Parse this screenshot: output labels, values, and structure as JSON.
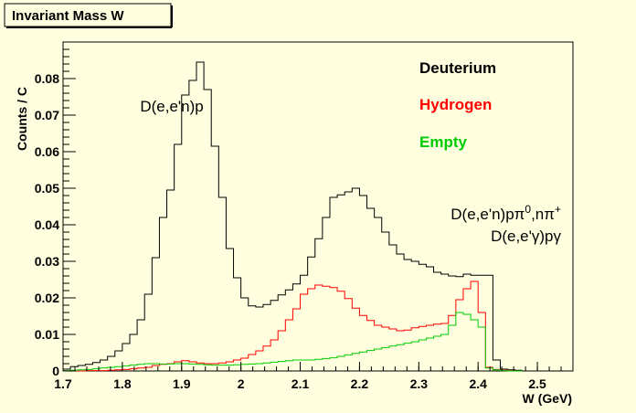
{
  "chart_data": {
    "type": "line",
    "title": "Invariant Mass W",
    "xlabel": "W (GeV)",
    "ylabel": "Counts / C",
    "xlim": [
      1.7,
      2.56
    ],
    "ylim": [
      0,
      0.09
    ],
    "xticks": [
      {
        "value": 1.7,
        "label": "1.7"
      },
      {
        "value": 1.8,
        "label": "1.8"
      },
      {
        "value": 1.9,
        "label": "1.9"
      },
      {
        "value": 2.0,
        "label": "2"
      },
      {
        "value": 2.1,
        "label": "2.1"
      },
      {
        "value": 2.2,
        "label": "2.2"
      },
      {
        "value": 2.3,
        "label": "2.3"
      },
      {
        "value": 2.4,
        "label": "2.4"
      },
      {
        "value": 2.5,
        "label": "2.5"
      }
    ],
    "yticks": [
      {
        "value": 0,
        "label": "0"
      },
      {
        "value": 0.01,
        "label": "0.01"
      },
      {
        "value": 0.02,
        "label": "0.02"
      },
      {
        "value": 0.03,
        "label": "0.03"
      },
      {
        "value": 0.04,
        "label": "0.04"
      },
      {
        "value": 0.05,
        "label": "0.05"
      },
      {
        "value": 0.06,
        "label": "0.06"
      },
      {
        "value": 0.07,
        "label": "0.07"
      },
      {
        "value": 0.08,
        "label": "0.08"
      }
    ],
    "bin_width": 0.0125,
    "bin_start": 1.7,
    "grid": false,
    "legend_position": "top-right",
    "series": [
      {
        "name": "Deuterium",
        "color": "#000000",
        "values": [
          0.0005,
          0.0012,
          0.0015,
          0.0018,
          0.0023,
          0.003,
          0.004,
          0.0055,
          0.0075,
          0.01,
          0.014,
          0.021,
          0.031,
          0.042,
          0.0495,
          0.062,
          0.0755,
          0.0795,
          0.0845,
          0.077,
          0.0615,
          0.0475,
          0.0335,
          0.0255,
          0.02,
          0.0178,
          0.0175,
          0.0182,
          0.0193,
          0.0208,
          0.0222,
          0.0238,
          0.0262,
          0.0312,
          0.0362,
          0.042,
          0.0475,
          0.0482,
          0.049,
          0.05,
          0.048,
          0.0445,
          0.042,
          0.038,
          0.0345,
          0.032,
          0.0305,
          0.03,
          0.0292,
          0.0285,
          0.027,
          0.0265,
          0.026,
          0.0258,
          0.0265,
          0.0262,
          0.0262,
          0.0262,
          0.003,
          0.0005,
          0.0003,
          0.0002
        ]
      },
      {
        "name": "Hydrogen",
        "color": "#ff0000",
        "values": [
          0,
          0,
          0,
          0.0001,
          0.0001,
          0.0001,
          0.0002,
          0.0003,
          0.0004,
          0.0006,
          0.0008,
          0.001,
          0.0015,
          0.0018,
          0.002,
          0.0025,
          0.0028,
          0.0025,
          0.0022,
          0.002,
          0.002,
          0.0022,
          0.0025,
          0.003,
          0.0035,
          0.0045,
          0.0055,
          0.0068,
          0.0085,
          0.011,
          0.014,
          0.017,
          0.021,
          0.0225,
          0.0235,
          0.0232,
          0.0228,
          0.0218,
          0.0198,
          0.0172,
          0.0152,
          0.0138,
          0.0125,
          0.012,
          0.0115,
          0.011,
          0.0112,
          0.0118,
          0.0122,
          0.0125,
          0.0128,
          0.013,
          0.0152,
          0.0195,
          0.0225,
          0.0245,
          0.016,
          0.001,
          0.0004,
          0.0002,
          0.0001,
          0
        ]
      },
      {
        "name": "Empty",
        "color": "#00cc00",
        "values": [
          0.0001,
          0.0002,
          0.0003,
          0.0004,
          0.0006,
          0.0008,
          0.001,
          0.0012,
          0.0014,
          0.0016,
          0.0018,
          0.002,
          0.002,
          0.0019,
          0.0019,
          0.002,
          0.002,
          0.0019,
          0.0018,
          0.0017,
          0.0016,
          0.0016,
          0.0016,
          0.0017,
          0.0018,
          0.0019,
          0.002,
          0.0022,
          0.0024,
          0.0026,
          0.0028,
          0.003,
          0.003,
          0.003,
          0.0032,
          0.0034,
          0.0036,
          0.004,
          0.0044,
          0.0048,
          0.0052,
          0.0056,
          0.006,
          0.0064,
          0.0068,
          0.0072,
          0.0076,
          0.008,
          0.0085,
          0.009,
          0.0095,
          0.01,
          0.0125,
          0.016,
          0.0155,
          0.014,
          0.012,
          0.0008,
          0.0003,
          0.0001,
          0,
          0
        ]
      }
    ],
    "annotations": [
      {
        "text": "D(e,e'n)p",
        "x": 1.83,
        "y": 0.071,
        "anchor": "start"
      },
      {
        "text_parts": [
          "D(e,e'n)p",
          "π",
          "0",
          ",n",
          "π",
          "+"
        ],
        "x": 2.54,
        "y": 0.0415,
        "anchor": "end"
      },
      {
        "text_parts": [
          "D(e,e'",
          "γ",
          ")p",
          "γ"
        ],
        "x": 2.54,
        "y": 0.0355,
        "anchor": "end"
      }
    ]
  }
}
